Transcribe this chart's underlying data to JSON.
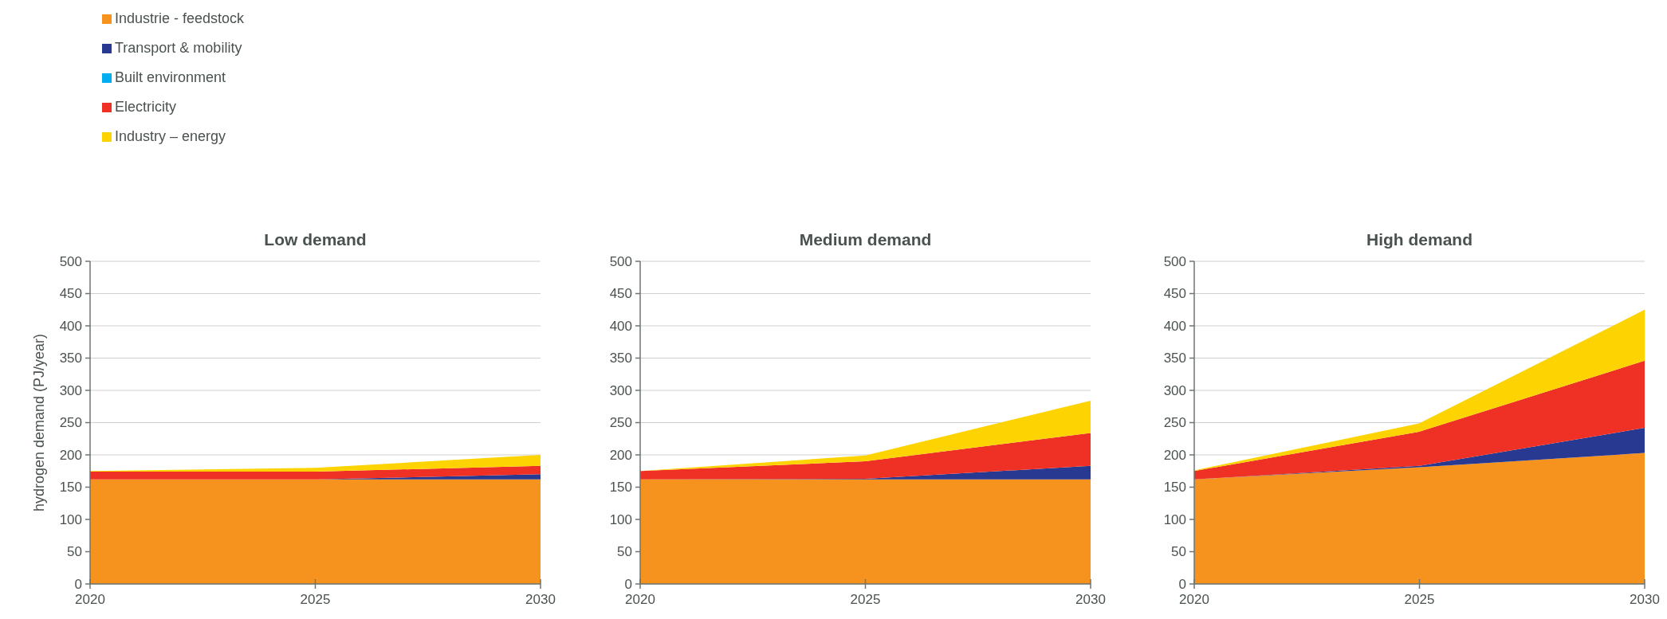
{
  "chart_data": [
    {
      "type": "area",
      "stacked": true,
      "title": "Low demand",
      "ylabel": "hydrogen demand (PJ/year)",
      "x": [
        2020,
        2025,
        2030
      ],
      "xlim": [
        2020,
        2030
      ],
      "xticks": [
        2020,
        2025,
        2030
      ],
      "ylim": [
        0,
        500
      ],
      "yticks": [
        0,
        50,
        100,
        150,
        200,
        250,
        300,
        350,
        400,
        450,
        500
      ],
      "grid": "y",
      "legend": "top left",
      "series": [
        {
          "name": "Industrie - feedstock",
          "color": "#f6921e",
          "values": [
            162,
            162,
            162
          ]
        },
        {
          "name": "Transport & mobility",
          "color": "#283991",
          "values": [
            0,
            0,
            8
          ]
        },
        {
          "name": "Built environment",
          "color": "#00aeef",
          "values": [
            null,
            null,
            null
          ]
        },
        {
          "name": "Electricity",
          "color": "#ee3124",
          "values": [
            12,
            12,
            13
          ]
        },
        {
          "name": "Industry – energy",
          "color": "#fdd402",
          "values": [
            1,
            6,
            17
          ]
        }
      ]
    },
    {
      "type": "area",
      "stacked": true,
      "title": "Medium demand",
      "x": [
        2020,
        2025,
        2030
      ],
      "xlim": [
        2020,
        2030
      ],
      "xticks": [
        2020,
        2025,
        2030
      ],
      "ylim": [
        0,
        500
      ],
      "yticks": [
        0,
        50,
        100,
        150,
        200,
        250,
        300,
        350,
        400,
        450,
        500
      ],
      "grid": "y",
      "series": [
        {
          "color": "#f6921e",
          "values": [
            162,
            162,
            162
          ]
        },
        {
          "color": "#283991",
          "values": [
            0,
            1,
            21
          ]
        },
        {
          "color": "#ee3124",
          "values": [
            13,
            27,
            51
          ]
        },
        {
          "color": "#fdd402",
          "values": [
            0,
            9,
            50
          ]
        }
      ]
    },
    {
      "type": "area",
      "stacked": true,
      "title": "High demand",
      "x": [
        2020,
        2025,
        2030
      ],
      "xlim": [
        2020,
        2030
      ],
      "xticks": [
        2020,
        2025,
        2030
      ],
      "ylim": [
        0,
        500
      ],
      "yticks": [
        0,
        50,
        100,
        150,
        200,
        250,
        300,
        350,
        400,
        450,
        500
      ],
      "grid": "y",
      "series": [
        {
          "color": "#f6921e",
          "values": [
            162,
            181,
            203
          ]
        },
        {
          "color": "#283991",
          "values": [
            0,
            2,
            39
          ]
        },
        {
          "color": "#ee3124",
          "values": [
            13,
            53,
            104
          ]
        },
        {
          "color": "#fdd402",
          "values": [
            1,
            13,
            79
          ]
        }
      ]
    }
  ]
}
